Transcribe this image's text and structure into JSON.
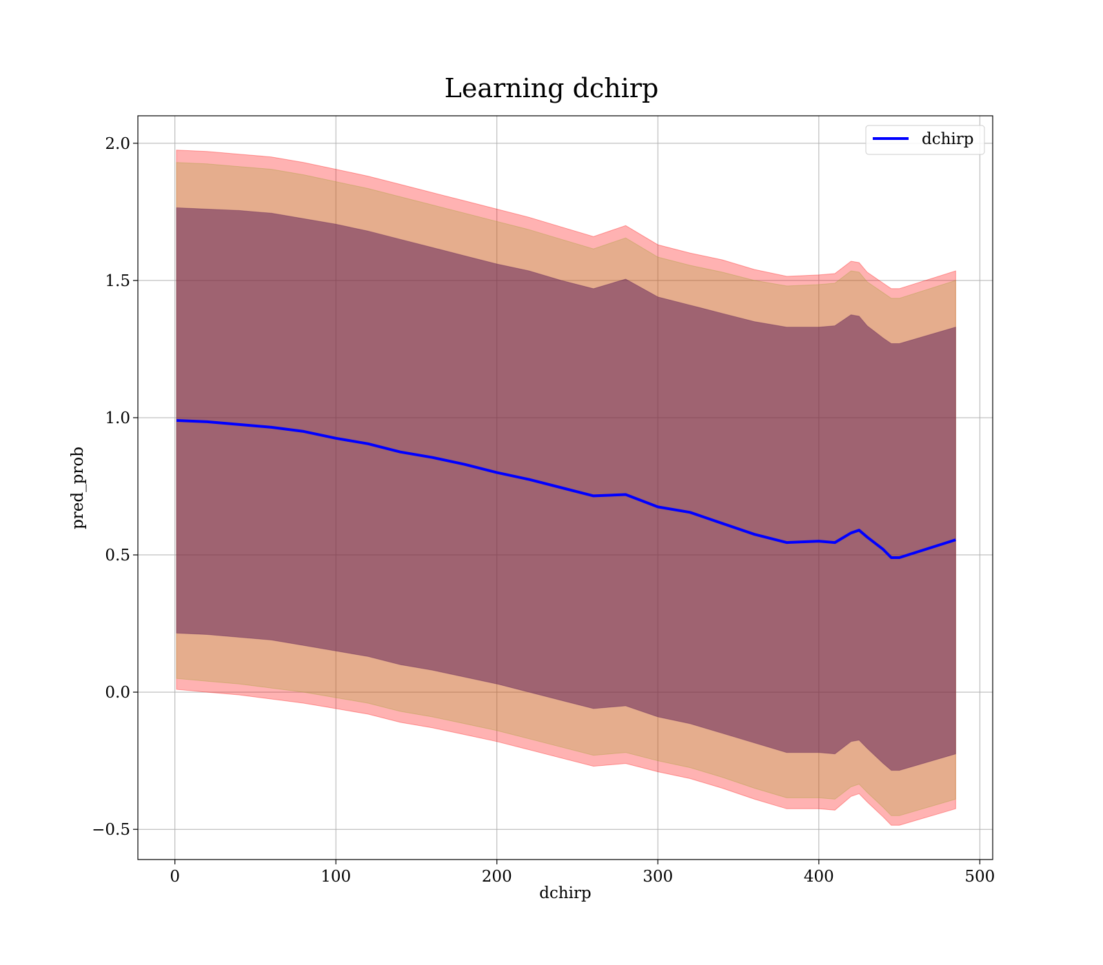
{
  "chart_data": {
    "type": "line",
    "title": "Learning dchirp",
    "xlabel": "dchirp",
    "ylabel": "pred_prob",
    "xlim": [
      -23,
      508
    ],
    "ylim": [
      -0.61,
      2.1
    ],
    "xticks": [
      0,
      100,
      200,
      300,
      400,
      500
    ],
    "xtick_labels": [
      "0",
      "100",
      "200",
      "300",
      "400",
      "500"
    ],
    "yticks": [
      -0.5,
      0.0,
      0.5,
      1.0,
      1.5,
      2.0
    ],
    "ytick_labels": [
      "−0.5",
      "0.0",
      "0.5",
      "1.0",
      "1.5",
      "2.0"
    ],
    "grid": true,
    "legend": {
      "location": "upper right",
      "entries": [
        {
          "label": "dchirp",
          "color": "#0000ff"
        }
      ]
    },
    "x": [
      1,
      20,
      40,
      60,
      80,
      100,
      120,
      140,
      160,
      180,
      200,
      220,
      240,
      260,
      280,
      300,
      320,
      340,
      360,
      380,
      400,
      410,
      420,
      425,
      430,
      440,
      445,
      450,
      485
    ],
    "series": [
      {
        "name": "dchirp",
        "color": "#0000ff",
        "values": [
          0.99,
          0.985,
          0.975,
          0.965,
          0.95,
          0.925,
          0.905,
          0.875,
          0.855,
          0.83,
          0.8,
          0.775,
          0.745,
          0.715,
          0.72,
          0.675,
          0.655,
          0.615,
          0.575,
          0.545,
          0.55,
          0.545,
          0.58,
          0.59,
          0.565,
          0.52,
          0.49,
          0.49,
          0.555
        ]
      }
    ],
    "bands": [
      {
        "name": "band_outer",
        "color": "#ff0000",
        "opacity": 0.3,
        "upper": [
          1.975,
          1.97,
          1.96,
          1.95,
          1.93,
          1.905,
          1.88,
          1.85,
          1.82,
          1.79,
          1.76,
          1.73,
          1.695,
          1.66,
          1.7,
          1.63,
          1.6,
          1.575,
          1.54,
          1.515,
          1.52,
          1.525,
          1.57,
          1.565,
          1.53,
          1.49,
          1.47,
          1.47,
          1.535
        ],
        "lower": [
          0.01,
          0.0,
          -0.01,
          -0.025,
          -0.04,
          -0.06,
          -0.08,
          -0.11,
          -0.13,
          -0.155,
          -0.18,
          -0.21,
          -0.24,
          -0.27,
          -0.26,
          -0.29,
          -0.315,
          -0.35,
          -0.39,
          -0.425,
          -0.425,
          -0.43,
          -0.38,
          -0.37,
          -0.4,
          -0.455,
          -0.485,
          -0.485,
          -0.425
        ]
      },
      {
        "name": "band_middle",
        "color": "#a0a030",
        "opacity": 0.28,
        "upper": [
          1.93,
          1.925,
          1.915,
          1.905,
          1.885,
          1.86,
          1.835,
          1.805,
          1.775,
          1.745,
          1.715,
          1.685,
          1.65,
          1.615,
          1.655,
          1.585,
          1.555,
          1.53,
          1.5,
          1.48,
          1.485,
          1.49,
          1.535,
          1.53,
          1.495,
          1.455,
          1.435,
          1.435,
          1.5
        ],
        "lower": [
          0.05,
          0.04,
          0.03,
          0.015,
          0.0,
          -0.02,
          -0.04,
          -0.07,
          -0.09,
          -0.115,
          -0.14,
          -0.17,
          -0.2,
          -0.23,
          -0.22,
          -0.25,
          -0.275,
          -0.31,
          -0.35,
          -0.385,
          -0.385,
          -0.39,
          -0.345,
          -0.335,
          -0.365,
          -0.42,
          -0.45,
          -0.45,
          -0.39
        ]
      },
      {
        "name": "band_inner",
        "color": "#5a1a55",
        "opacity": 0.5,
        "upper": [
          1.765,
          1.76,
          1.755,
          1.745,
          1.725,
          1.705,
          1.68,
          1.65,
          1.62,
          1.59,
          1.56,
          1.535,
          1.5,
          1.47,
          1.505,
          1.44,
          1.41,
          1.38,
          1.35,
          1.33,
          1.33,
          1.335,
          1.375,
          1.37,
          1.335,
          1.29,
          1.27,
          1.27,
          1.33
        ],
        "lower": [
          0.215,
          0.21,
          0.2,
          0.19,
          0.17,
          0.15,
          0.13,
          0.1,
          0.08,
          0.055,
          0.03,
          0.0,
          -0.03,
          -0.06,
          -0.05,
          -0.09,
          -0.115,
          -0.15,
          -0.185,
          -0.22,
          -0.22,
          -0.225,
          -0.18,
          -0.175,
          -0.205,
          -0.26,
          -0.285,
          -0.285,
          -0.225
        ]
      }
    ]
  }
}
